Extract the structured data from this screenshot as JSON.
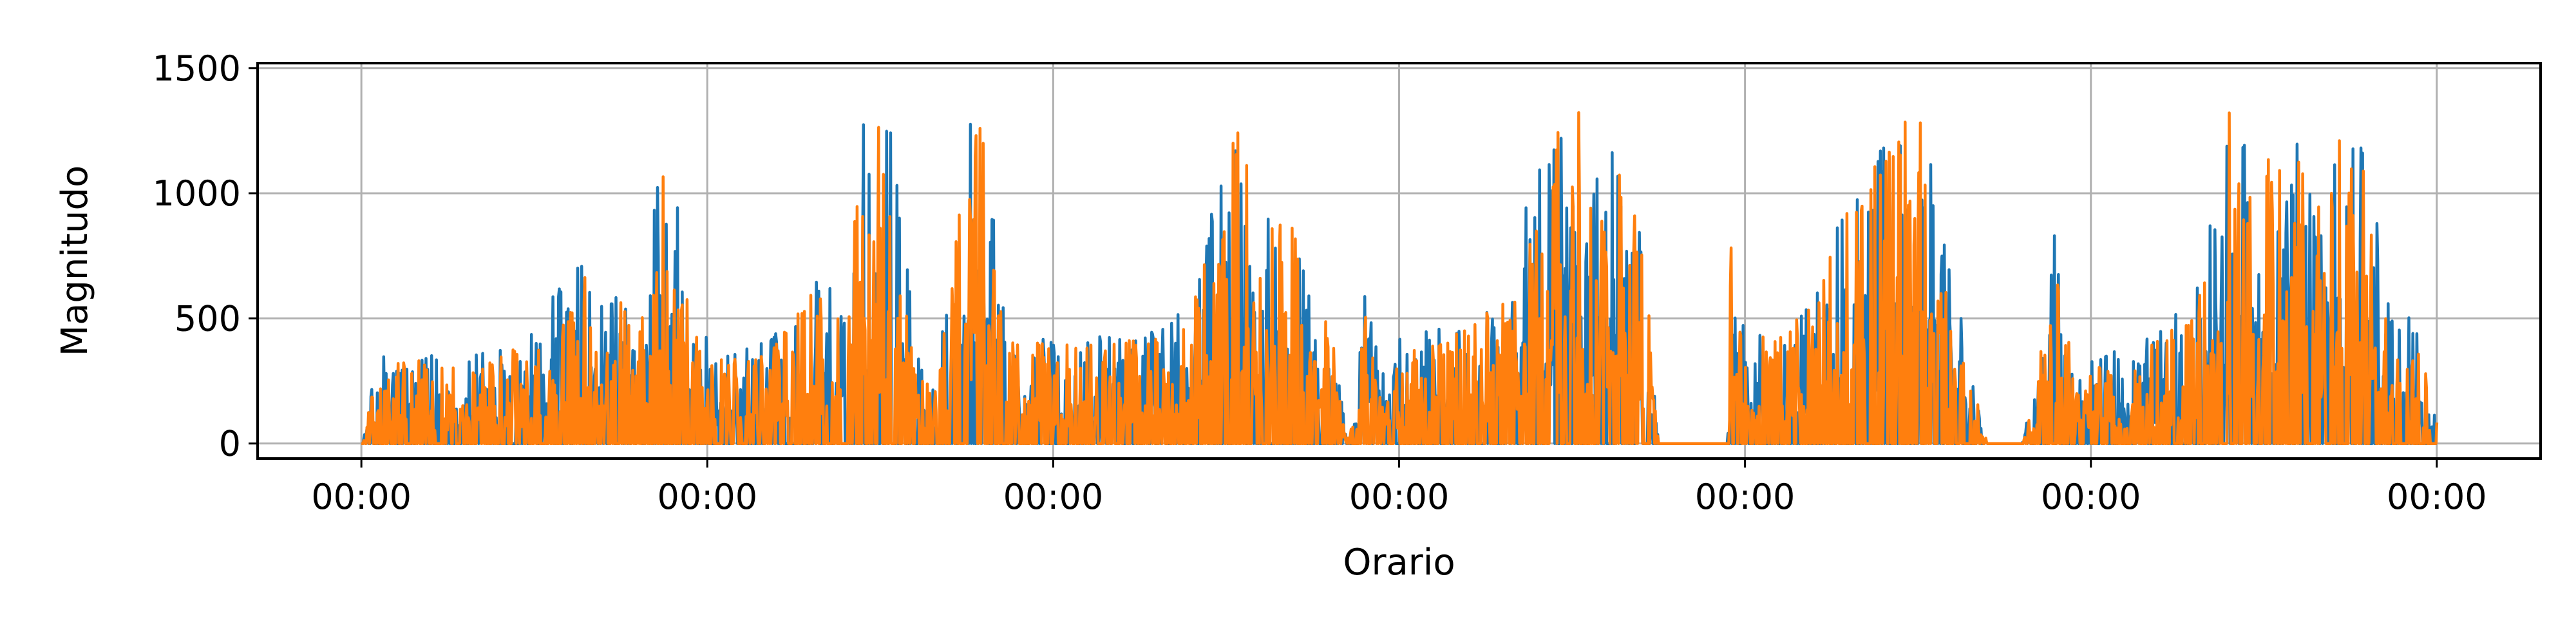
{
  "chart_data": {
    "type": "line",
    "title": "",
    "xlabel": "Orario",
    "ylabel": "Magnitudo",
    "grid": true,
    "legend": "none",
    "x_tick_labels": [
      "00:00",
      "00:00",
      "00:00",
      "00:00",
      "00:00",
      "00:00",
      "00:00"
    ],
    "x_range_days": [
      -0.3,
      6.3
    ],
    "ylim": [
      -60,
      1520
    ],
    "y_ticks": [
      0,
      500,
      1000,
      1500
    ],
    "series": [
      {
        "color": "#1f77b4",
        "profile": [
          [
            0,
            0
          ],
          [
            0.05,
            360
          ],
          [
            0.15,
            380
          ],
          [
            0.2,
            360
          ],
          [
            0.25,
            350
          ],
          [
            0.3,
            400
          ],
          [
            0.35,
            380
          ],
          [
            0.45,
            420
          ],
          [
            0.5,
            470
          ],
          [
            0.55,
            600
          ],
          [
            0.6,
            720
          ],
          [
            0.65,
            760
          ],
          [
            0.7,
            580
          ],
          [
            0.75,
            630
          ],
          [
            0.8,
            440
          ],
          [
            0.85,
            1000
          ],
          [
            0.9,
            1200
          ],
          [
            0.95,
            560
          ],
          [
            1.0,
            420
          ],
          [
            1.05,
            380
          ],
          [
            1.1,
            380
          ],
          [
            1.15,
            420
          ],
          [
            1.2,
            440
          ],
          [
            1.25,
            560
          ],
          [
            1.3,
            680
          ],
          [
            1.35,
            640
          ],
          [
            1.4,
            500
          ],
          [
            1.45,
            1300
          ],
          [
            1.5,
            1320
          ],
          [
            1.55,
            1320
          ],
          [
            1.6,
            350
          ],
          [
            1.65,
            340
          ],
          [
            1.7,
            600
          ],
          [
            1.75,
            1260
          ],
          [
            1.8,
            1350
          ],
          [
            1.85,
            560
          ],
          [
            1.9,
            440
          ],
          [
            1.95,
            460
          ],
          [
            2.0,
            430
          ],
          [
            2.1,
            440
          ],
          [
            2.2,
            450
          ],
          [
            2.3,
            460
          ],
          [
            2.4,
            560
          ],
          [
            2.5,
            1200
          ],
          [
            2.55,
            1260
          ],
          [
            2.6,
            700
          ],
          [
            2.65,
            1160
          ],
          [
            2.7,
            880
          ],
          [
            2.75,
            580
          ],
          [
            2.8,
            540
          ],
          [
            2.85,
            0
          ],
          [
            2.9,
            620
          ],
          [
            2.95,
            280
          ],
          [
            3.0,
            420
          ],
          [
            3.1,
            460
          ],
          [
            3.2,
            500
          ],
          [
            3.3,
            640
          ],
          [
            3.4,
            1140
          ],
          [
            3.5,
            1330
          ],
          [
            3.55,
            1300
          ],
          [
            3.6,
            1220
          ],
          [
            3.7,
            980
          ],
          [
            3.75,
            0
          ],
          [
            3.85,
            0
          ],
          [
            3.95,
            0
          ],
          [
            3.96,
            880
          ],
          [
            4.0,
            460
          ],
          [
            4.1,
            480
          ],
          [
            4.2,
            600
          ],
          [
            4.3,
            1000
          ],
          [
            4.4,
            1200
          ],
          [
            4.5,
            1390
          ],
          [
            4.55,
            1180
          ],
          [
            4.6,
            760
          ],
          [
            4.65,
            340
          ],
          [
            4.7,
            0
          ],
          [
            4.8,
            0
          ],
          [
            4.85,
            360
          ],
          [
            4.9,
            900
          ],
          [
            4.95,
            300
          ],
          [
            5.0,
            340
          ],
          [
            5.1,
            380
          ],
          [
            5.2,
            460
          ],
          [
            5.3,
            640
          ],
          [
            5.4,
            1300
          ],
          [
            5.5,
            1200
          ],
          [
            5.6,
            1220
          ],
          [
            5.7,
            1440
          ],
          [
            5.8,
            1200
          ],
          [
            5.85,
            700
          ],
          [
            5.9,
            560
          ],
          [
            5.95,
            420
          ],
          [
            6.0,
            140
          ],
          [
            6.0001,
            0
          ]
        ]
      },
      {
        "color": "#ff7f0e",
        "profile": [
          [
            0,
            0
          ],
          [
            0.05,
            310
          ],
          [
            0.15,
            340
          ],
          [
            0.2,
            320
          ],
          [
            0.25,
            300
          ],
          [
            0.3,
            360
          ],
          [
            0.35,
            330
          ],
          [
            0.45,
            380
          ],
          [
            0.5,
            420
          ],
          [
            0.55,
            560
          ],
          [
            0.6,
            680
          ],
          [
            0.65,
            700
          ],
          [
            0.7,
            540
          ],
          [
            0.75,
            580
          ],
          [
            0.8,
            400
          ],
          [
            0.85,
            1020
          ],
          [
            0.9,
            1160
          ],
          [
            0.95,
            520
          ],
          [
            1.0,
            380
          ],
          [
            1.05,
            340
          ],
          [
            1.1,
            340
          ],
          [
            1.15,
            380
          ],
          [
            1.2,
            400
          ],
          [
            1.25,
            520
          ],
          [
            1.3,
            620
          ],
          [
            1.35,
            600
          ],
          [
            1.4,
            460
          ],
          [
            1.45,
            1340
          ],
          [
            1.5,
            1280
          ],
          [
            1.55,
            1260
          ],
          [
            1.6,
            300
          ],
          [
            1.65,
            300
          ],
          [
            1.7,
            560
          ],
          [
            1.75,
            1220
          ],
          [
            1.8,
            1300
          ],
          [
            1.85,
            520
          ],
          [
            1.9,
            400
          ],
          [
            1.95,
            420
          ],
          [
            2.0,
            390
          ],
          [
            2.1,
            400
          ],
          [
            2.2,
            410
          ],
          [
            2.3,
            420
          ],
          [
            2.4,
            520
          ],
          [
            2.5,
            1140
          ],
          [
            2.55,
            1300
          ],
          [
            2.6,
            660
          ],
          [
            2.65,
            1100
          ],
          [
            2.7,
            820
          ],
          [
            2.75,
            540
          ],
          [
            2.8,
            500
          ],
          [
            2.85,
            0
          ],
          [
            2.9,
            580
          ],
          [
            2.95,
            240
          ],
          [
            3.0,
            380
          ],
          [
            3.1,
            420
          ],
          [
            3.2,
            460
          ],
          [
            3.3,
            600
          ],
          [
            3.4,
            1100
          ],
          [
            3.5,
            1370
          ],
          [
            3.55,
            1260
          ],
          [
            3.6,
            1180
          ],
          [
            3.7,
            940
          ],
          [
            3.75,
            0
          ],
          [
            3.85,
            0
          ],
          [
            3.95,
            0
          ],
          [
            3.96,
            860
          ],
          [
            4.0,
            420
          ],
          [
            4.1,
            440
          ],
          [
            4.2,
            560
          ],
          [
            4.3,
            960
          ],
          [
            4.4,
            1160
          ],
          [
            4.5,
            1360
          ],
          [
            4.55,
            1100
          ],
          [
            4.6,
            720
          ],
          [
            4.65,
            300
          ],
          [
            4.7,
            0
          ],
          [
            4.8,
            0
          ],
          [
            4.85,
            320
          ],
          [
            4.9,
            840
          ],
          [
            4.95,
            260
          ],
          [
            5.0,
            300
          ],
          [
            5.1,
            340
          ],
          [
            5.2,
            420
          ],
          [
            5.3,
            600
          ],
          [
            5.4,
            1340
          ],
          [
            5.5,
            1160
          ],
          [
            5.6,
            1160
          ],
          [
            5.7,
            1240
          ],
          [
            5.8,
            1160
          ],
          [
            5.85,
            660
          ],
          [
            5.9,
            520
          ],
          [
            5.95,
            380
          ],
          [
            6.0,
            100
          ],
          [
            6.0001,
            0
          ]
        ]
      }
    ]
  }
}
